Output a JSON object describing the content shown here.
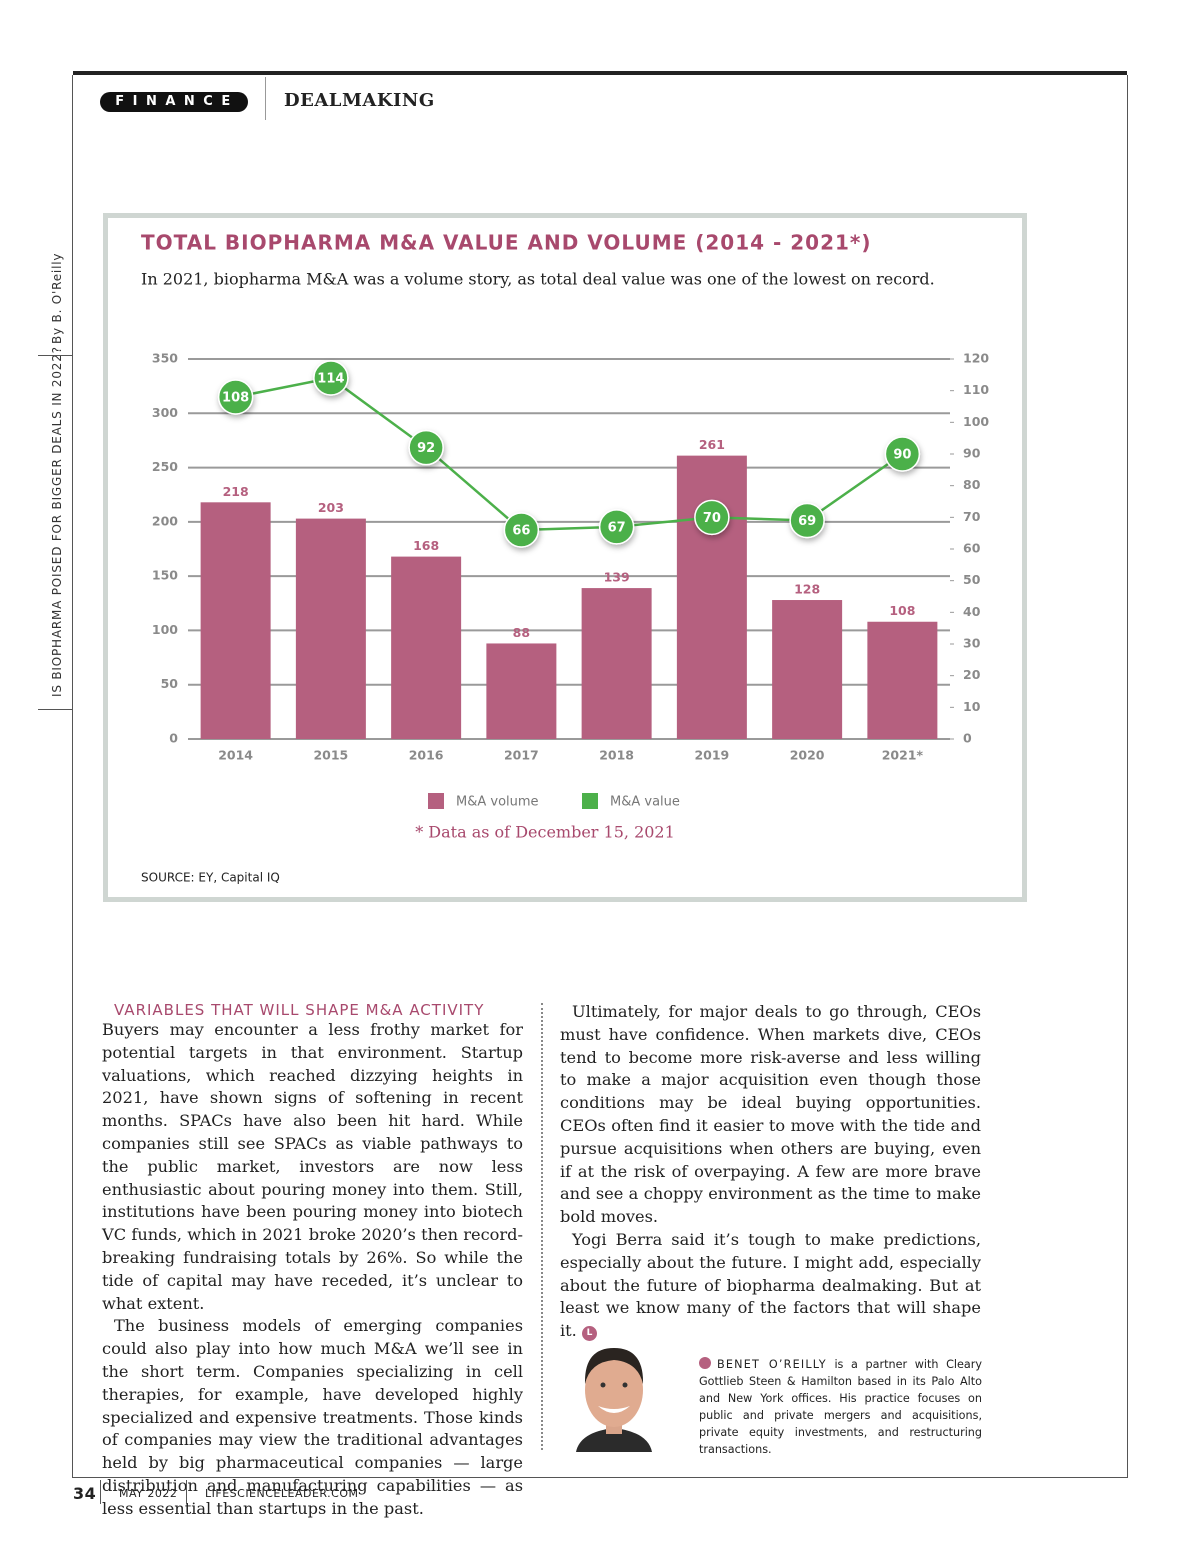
{
  "header": {
    "section": "FINANCE",
    "title": "DEALMAKING"
  },
  "sidebar": {
    "headline": "IS BIOPHARMA POISED FOR BIGGER DEALS IN 2022?",
    "byline": "By B. O'Reilly"
  },
  "chart_data": {
    "type": "bar",
    "title": "TOTAL BIOPHARMA M&A VALUE AND VOLUME (2014 - 2021*)",
    "subtitle": "In 2021, biopharma M&A was a volume story, as total deal value was one of the lowest on record.",
    "categories": [
      "2014",
      "2015",
      "2016",
      "2017",
      "2018",
      "2019",
      "2020",
      "2021*"
    ],
    "series": [
      {
        "name": "M&A volume",
        "color": "#b5607f",
        "values": [
          218,
          203,
          168,
          88,
          139,
          261,
          128,
          108
        ]
      },
      {
        "name": "M&A value",
        "color": "#4cb04a",
        "type": "line",
        "axis": "y2",
        "values": [
          108,
          114,
          92,
          66,
          67,
          70,
          69,
          90
        ]
      }
    ],
    "ylim": [
      0,
      350
    ],
    "yticks": [
      0,
      50,
      100,
      150,
      200,
      250,
      300,
      350
    ],
    "y2lim": [
      0,
      120
    ],
    "y2ticks": [
      0,
      10,
      20,
      30,
      40,
      50,
      60,
      70,
      80,
      90,
      100,
      110,
      120
    ],
    "grid": true,
    "note": "* Data as of December 15, 2021",
    "source": "SOURCE: EY, Capital IQ"
  },
  "article": {
    "heading": "VARIABLES THAT WILL SHAPE M&A ACTIVITY",
    "left": [
      "Buyers may encounter a less frothy market for potential targets in that environment. Startup valuations, which reached dizzying heights in 2021, have shown signs of softening in recent months. SPACs have also been hit hard. While companies still see SPACs as viable pathways to the public market, investors are now less enthusiastic about pouring money into them. Still, institutions have been pouring money into biotech VC funds, which in 2021 broke 2020’s then record-breaking fundraising totals by 26%. So while the tide of capital may have receded, it’s unclear to what extent.",
      "The business models of emerging companies could also play into how much M&A we’ll see in the short term. Companies specializing in cell therapies, for example, have developed highly specialized and expensive treatments. Those kinds of companies may view the traditional advantages held by big pharmaceutical companies — large distribution and manufacturing capabilities — as less essential than startups in the past."
    ],
    "right": [
      "Ultimately, for major deals to go through, CEOs must have confidence. When markets dive, CEOs tend to become more risk-averse and less willing to make a major acquisition even though those conditions may be ideal buying opportunities. CEOs often find it easier to move with the tide and pursue acquisitions when others are buying, even if at the risk of overpaying. A few are more brave and see a choppy environment as the time to make bold moves.",
      "Yogi Berra said it’s tough to make predictions, especially about the future. I might add, especially about the future of biopharma dealmaking. But at least we know many of the factors that will shape it."
    ],
    "end_mark": "L"
  },
  "bio": {
    "name": "BENET O’REILLY",
    "text": "is a partner with Cleary Gottlieb Steen & Hamilton based in its Palo Alto and New York offices. His practice focuses on public and private mergers and acquisitions, private equity investments, and restructuring transactions."
  },
  "footer": {
    "page": "34",
    "issue": "MAY 2022",
    "site": "LIFESCIENCELEADER.COM"
  }
}
